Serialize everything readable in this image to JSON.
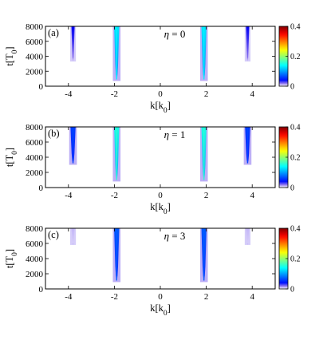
{
  "chart_data": [
    {
      "type": "heatmap",
      "panel_tag": "(a)",
      "eta_label": "η = 0",
      "xlabel": "k[k0]",
      "ylabel": "t[T0]",
      "xlim": [
        -5,
        5
      ],
      "ylim": [
        0,
        8000
      ],
      "x_ticks": [
        -4,
        -2,
        0,
        2,
        4
      ],
      "y_ticks": [
        0,
        2000,
        4000,
        6000,
        8000
      ],
      "colorbar": {
        "range": [
          0,
          0.4
        ],
        "ticks": [
          0,
          0.2,
          0.4
        ],
        "colormap": "jet"
      },
      "streaks": [
        {
          "k": -3.8,
          "t_start": 3300,
          "t_end": 8000,
          "peak": 0.03
        },
        {
          "k": -1.9,
          "t_start": 700,
          "t_end": 8000,
          "peak": 0.13
        },
        {
          "k": 1.9,
          "t_start": 700,
          "t_end": 8000,
          "peak": 0.13
        },
        {
          "k": 3.8,
          "t_start": 3300,
          "t_end": 8000,
          "peak": 0.03
        }
      ]
    },
    {
      "type": "heatmap",
      "panel_tag": "(b)",
      "eta_label": "η = 1",
      "xlabel": "k[k0]",
      "ylabel": "t[T0]",
      "xlim": [
        -5,
        5
      ],
      "ylim": [
        0,
        8000
      ],
      "x_ticks": [
        -4,
        -2,
        0,
        2,
        4
      ],
      "y_ticks": [
        0,
        2000,
        4000,
        6000,
        8000
      ],
      "colorbar": {
        "range": [
          0,
          0.4
        ],
        "ticks": [
          0,
          0.2,
          0.4
        ],
        "colormap": "jet"
      },
      "streaks": [
        {
          "k": -3.8,
          "t_start": 3000,
          "t_end": 8000,
          "peak": 0.06
        },
        {
          "k": -1.9,
          "t_start": 800,
          "t_end": 8000,
          "peak": 0.15
        },
        {
          "k": 1.9,
          "t_start": 800,
          "t_end": 8000,
          "peak": 0.15
        },
        {
          "k": 3.8,
          "t_start": 3000,
          "t_end": 8000,
          "peak": 0.06
        }
      ]
    },
    {
      "type": "heatmap",
      "panel_tag": "(c)",
      "eta_label": "η = 3",
      "xlabel": "k[k0]",
      "ylabel": "t[T0]",
      "xlim": [
        -5,
        5
      ],
      "ylim": [
        0,
        8000
      ],
      "x_ticks": [
        -4,
        -2,
        0,
        2,
        4
      ],
      "y_ticks": [
        0,
        2000,
        4000,
        6000,
        8000
      ],
      "colorbar": {
        "range": [
          0,
          0.4
        ],
        "ticks": [
          0,
          0.2,
          0.4
        ],
        "colormap": "jet"
      },
      "streaks": [
        {
          "k": -3.8,
          "t_start": 5800,
          "t_end": 8000,
          "peak": 0.01
        },
        {
          "k": -1.9,
          "t_start": 900,
          "t_end": 8000,
          "peak": 0.07
        },
        {
          "k": 1.9,
          "t_start": 900,
          "t_end": 8000,
          "peak": 0.07
        },
        {
          "k": 3.8,
          "t_start": 5800,
          "t_end": 8000,
          "peak": 0.01
        }
      ]
    }
  ]
}
